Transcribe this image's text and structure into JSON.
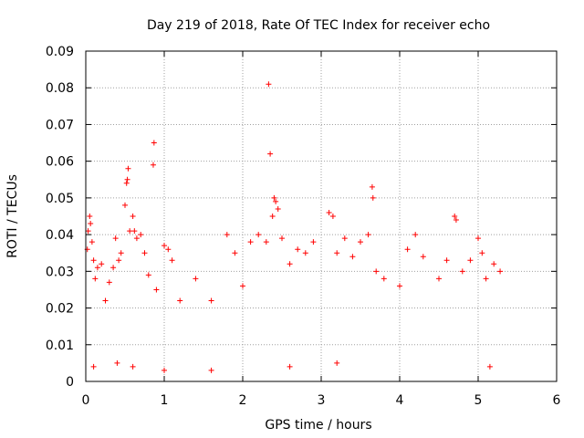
{
  "chart_data": {
    "type": "scatter",
    "title": "Day 219 of 2018, Rate Of TEC Index for receiver echo",
    "xlabel": "GPS time / hours",
    "ylabel": "ROTI / TECUs",
    "xlim": [
      0,
      6
    ],
    "ylim": [
      0,
      0.09
    ],
    "x_ticks": [
      "0",
      "1",
      "2",
      "3",
      "4",
      "5",
      "6"
    ],
    "y_ticks": [
      "0",
      "0.01",
      "0.02",
      "0.03",
      "0.04",
      "0.05",
      "0.06",
      "0.07",
      "0.08",
      "0.09"
    ],
    "grid": true,
    "marker": "+",
    "color": "#ff0000",
    "series": [
      {
        "points": [
          [
            0.02,
            0.036
          ],
          [
            0.03,
            0.041
          ],
          [
            0.05,
            0.045
          ],
          [
            0.06,
            0.043
          ],
          [
            0.08,
            0.038
          ],
          [
            0.1,
            0.033
          ],
          [
            0.12,
            0.028
          ],
          [
            0.15,
            0.031
          ],
          [
            0.2,
            0.032
          ],
          [
            0.25,
            0.022
          ],
          [
            0.3,
            0.027
          ],
          [
            0.35,
            0.031
          ],
          [
            0.38,
            0.039
          ],
          [
            0.42,
            0.033
          ],
          [
            0.45,
            0.035
          ],
          [
            0.5,
            0.048
          ],
          [
            0.52,
            0.054
          ],
          [
            0.53,
            0.055
          ],
          [
            0.54,
            0.058
          ],
          [
            0.56,
            0.041
          ],
          [
            0.6,
            0.045
          ],
          [
            0.62,
            0.041
          ],
          [
            0.65,
            0.039
          ],
          [
            0.7,
            0.04
          ],
          [
            0.75,
            0.035
          ],
          [
            0.8,
            0.029
          ],
          [
            0.86,
            0.059
          ],
          [
            0.87,
            0.065
          ],
          [
            0.9,
            0.025
          ],
          [
            1.0,
            0.037
          ],
          [
            1.05,
            0.036
          ],
          [
            1.1,
            0.033
          ],
          [
            1.2,
            0.022
          ],
          [
            1.4,
            0.028
          ],
          [
            1.6,
            0.022
          ],
          [
            1.8,
            0.04
          ],
          [
            1.9,
            0.035
          ],
          [
            2.0,
            0.026
          ],
          [
            2.1,
            0.038
          ],
          [
            2.2,
            0.04
          ],
          [
            2.3,
            0.038
          ],
          [
            2.33,
            0.081
          ],
          [
            2.35,
            0.062
          ],
          [
            2.38,
            0.045
          ],
          [
            2.4,
            0.05
          ],
          [
            2.42,
            0.049
          ],
          [
            2.45,
            0.047
          ],
          [
            2.5,
            0.039
          ],
          [
            2.6,
            0.032
          ],
          [
            2.7,
            0.036
          ],
          [
            2.8,
            0.035
          ],
          [
            2.9,
            0.038
          ],
          [
            3.1,
            0.046
          ],
          [
            3.15,
            0.045
          ],
          [
            3.2,
            0.035
          ],
          [
            3.3,
            0.039
          ],
          [
            3.4,
            0.034
          ],
          [
            3.5,
            0.038
          ],
          [
            3.6,
            0.04
          ],
          [
            3.65,
            0.053
          ],
          [
            3.66,
            0.05
          ],
          [
            3.7,
            0.03
          ],
          [
            3.8,
            0.028
          ],
          [
            4.0,
            0.026
          ],
          [
            4.1,
            0.036
          ],
          [
            4.2,
            0.04
          ],
          [
            4.3,
            0.034
          ],
          [
            4.5,
            0.028
          ],
          [
            4.6,
            0.033
          ],
          [
            4.7,
            0.045
          ],
          [
            4.72,
            0.044
          ],
          [
            4.8,
            0.03
          ],
          [
            4.9,
            0.033
          ],
          [
            5.0,
            0.039
          ],
          [
            5.05,
            0.035
          ],
          [
            5.1,
            0.028
          ],
          [
            5.2,
            0.032
          ],
          [
            5.28,
            0.03
          ],
          [
            0.1,
            0.004
          ],
          [
            0.4,
            0.005
          ],
          [
            0.6,
            0.004
          ],
          [
            1.0,
            0.003
          ],
          [
            1.6,
            0.003
          ],
          [
            2.6,
            0.004
          ],
          [
            3.2,
            0.005
          ],
          [
            5.15,
            0.004
          ]
        ]
      }
    ]
  }
}
